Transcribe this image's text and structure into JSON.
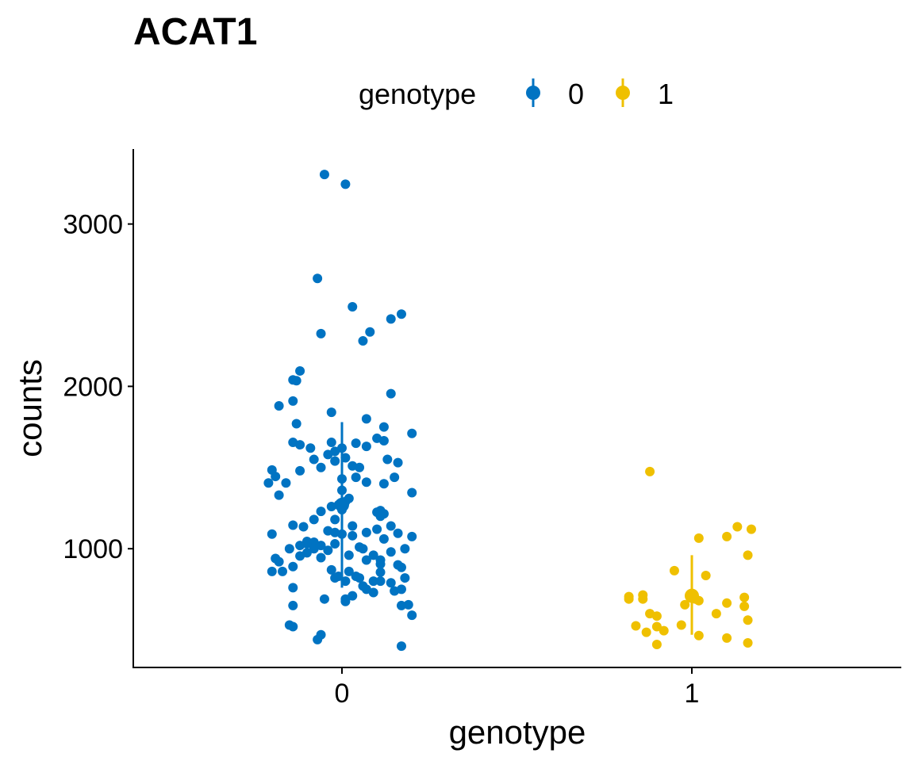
{
  "chart_data": {
    "type": "scatter",
    "title": "ACAT1",
    "xlabel": "genotype",
    "ylabel": "counts",
    "legend": {
      "title": "genotype",
      "position": "top",
      "entries": [
        "0",
        "1"
      ]
    },
    "categories": [
      "0",
      "1"
    ],
    "ylim": [
      280,
      3450
    ],
    "yticks": [
      1000,
      2000,
      3000
    ],
    "grid": false,
    "colors": {
      "0": "#0073C2",
      "1": "#EFC000"
    },
    "series": [
      {
        "name": "0",
        "summary": {
          "mean": 1270,
          "lower": 760,
          "upper": 1780
        },
        "points": [
          [
            -0.05,
            3305
          ],
          [
            0.01,
            3245
          ],
          [
            -0.07,
            2665
          ],
          [
            0.03,
            2490
          ],
          [
            0.17,
            2445
          ],
          [
            0.14,
            2415
          ],
          [
            -0.06,
            2325
          ],
          [
            0.08,
            2335
          ],
          [
            0.06,
            2280
          ],
          [
            -0.12,
            2095
          ],
          [
            -0.13,
            2035
          ],
          [
            -0.14,
            2040
          ],
          [
            0.14,
            1955
          ],
          [
            -0.14,
            1910
          ],
          [
            -0.18,
            1880
          ],
          [
            -0.03,
            1840
          ],
          [
            0.07,
            1800
          ],
          [
            0.12,
            1750
          ],
          [
            -0.13,
            1770
          ],
          [
            0.2,
            1710
          ],
          [
            0.1,
            1680
          ],
          [
            -0.14,
            1655
          ],
          [
            0.12,
            1665
          ],
          [
            -0.12,
            1640
          ],
          [
            0.04,
            1650
          ],
          [
            0.07,
            1630
          ],
          [
            -0.03,
            1655
          ],
          [
            -0.09,
            1620
          ],
          [
            -0.02,
            1600
          ],
          [
            0.0,
            1620
          ],
          [
            -0.04,
            1580
          ],
          [
            0.01,
            1560
          ],
          [
            -0.08,
            1550
          ],
          [
            0.13,
            1550
          ],
          [
            0.16,
            1530
          ],
          [
            -0.02,
            1540
          ],
          [
            0.03,
            1510
          ],
          [
            -0.06,
            1500
          ],
          [
            0.05,
            1500
          ],
          [
            -0.12,
            1480
          ],
          [
            -0.2,
            1485
          ],
          [
            -0.19,
            1445
          ],
          [
            0.15,
            1440
          ],
          [
            0.04,
            1440
          ],
          [
            0.0,
            1430
          ],
          [
            0.07,
            1410
          ],
          [
            0.12,
            1400
          ],
          [
            -0.21,
            1405
          ],
          [
            -0.16,
            1405
          ],
          [
            0.2,
            1345
          ],
          [
            -0.18,
            1330
          ],
          [
            0.0,
            1360
          ],
          [
            0.02,
            1310
          ],
          [
            0.01,
            1290
          ],
          [
            -0.01,
            1270
          ],
          [
            -0.03,
            1260
          ],
          [
            0.0,
            1240
          ],
          [
            0.11,
            1235
          ],
          [
            0.1,
            1225
          ],
          [
            0.12,
            1215
          ],
          [
            -0.06,
            1230
          ],
          [
            -0.08,
            1180
          ],
          [
            0.11,
            1200
          ],
          [
            -0.02,
            1180
          ],
          [
            -0.14,
            1145
          ],
          [
            -0.11,
            1135
          ],
          [
            0.03,
            1140
          ],
          [
            0.14,
            1140
          ],
          [
            0.1,
            1120
          ],
          [
            -0.04,
            1110
          ],
          [
            -0.02,
            1100
          ],
          [
            0.0,
            1090
          ],
          [
            0.07,
            1100
          ],
          [
            0.16,
            1095
          ],
          [
            -0.2,
            1090
          ],
          [
            0.2,
            1075
          ],
          [
            0.03,
            1080
          ],
          [
            0.12,
            1060
          ],
          [
            -0.1,
            1045
          ],
          [
            -0.08,
            1040
          ],
          [
            -0.1,
            1030
          ],
          [
            -0.06,
            1020
          ],
          [
            -0.02,
            1030
          ],
          [
            0.05,
            1010
          ],
          [
            -0.12,
            1020
          ],
          [
            0.06,
            1000
          ],
          [
            -0.08,
            1000
          ],
          [
            -0.15,
            1000
          ],
          [
            0.18,
            1000
          ],
          [
            -0.04,
            990
          ],
          [
            0.14,
            980
          ],
          [
            -0.1,
            975
          ],
          [
            0.09,
            960
          ],
          [
            -0.12,
            955
          ],
          [
            0.02,
            960
          ],
          [
            -0.06,
            945
          ],
          [
            0.11,
            930
          ],
          [
            0.07,
            930
          ],
          [
            -0.19,
            940
          ],
          [
            -0.18,
            920
          ],
          [
            0.11,
            905
          ],
          [
            -0.14,
            890
          ],
          [
            0.16,
            900
          ],
          [
            0.17,
            885
          ],
          [
            -0.03,
            870
          ],
          [
            0.02,
            860
          ],
          [
            -0.17,
            860
          ],
          [
            -0.2,
            860
          ],
          [
            0.11,
            855
          ],
          [
            0.04,
            830
          ],
          [
            -0.01,
            830
          ],
          [
            0.05,
            820
          ],
          [
            -0.02,
            820
          ],
          [
            0.18,
            820
          ],
          [
            0.09,
            800
          ],
          [
            0.01,
            800
          ],
          [
            0.11,
            800
          ],
          [
            0.14,
            790
          ],
          [
            0.06,
            770
          ],
          [
            -0.14,
            760
          ],
          [
            0.15,
            740
          ],
          [
            0.07,
            750
          ],
          [
            0.17,
            750
          ],
          [
            0.09,
            730
          ],
          [
            0.03,
            710
          ],
          [
            0.01,
            690
          ],
          [
            -0.05,
            690
          ],
          [
            0.01,
            675
          ],
          [
            0.17,
            650
          ],
          [
            0.19,
            655
          ],
          [
            -0.14,
            650
          ],
          [
            0.2,
            590
          ],
          [
            -0.15,
            530
          ],
          [
            -0.14,
            520
          ],
          [
            -0.06,
            470
          ],
          [
            -0.07,
            440
          ],
          [
            0.17,
            400
          ]
        ]
      },
      {
        "name": "1",
        "summary": {
          "mean": 710,
          "lower": 470,
          "upper": 960
        },
        "points": [
          [
            -0.12,
            1475
          ],
          [
            0.13,
            1135
          ],
          [
            0.17,
            1120
          ],
          [
            0.02,
            1065
          ],
          [
            0.1,
            1075
          ],
          [
            0.16,
            960
          ],
          [
            -0.05,
            865
          ],
          [
            0.04,
            835
          ],
          [
            -0.18,
            705
          ],
          [
            -0.14,
            715
          ],
          [
            0.15,
            700
          ],
          [
            0.01,
            690
          ],
          [
            -0.18,
            690
          ],
          [
            -0.14,
            690
          ],
          [
            0.0,
            720
          ],
          [
            0.02,
            680
          ],
          [
            0.1,
            665
          ],
          [
            -0.02,
            655
          ],
          [
            0.15,
            645
          ],
          [
            -0.12,
            600
          ],
          [
            0.07,
            600
          ],
          [
            -0.1,
            585
          ],
          [
            0.16,
            560
          ],
          [
            -0.16,
            525
          ],
          [
            -0.03,
            530
          ],
          [
            -0.1,
            520
          ],
          [
            -0.08,
            495
          ],
          [
            -0.13,
            485
          ],
          [
            0.02,
            465
          ],
          [
            0.1,
            450
          ],
          [
            -0.1,
            410
          ],
          [
            0.16,
            420
          ]
        ]
      }
    ]
  }
}
